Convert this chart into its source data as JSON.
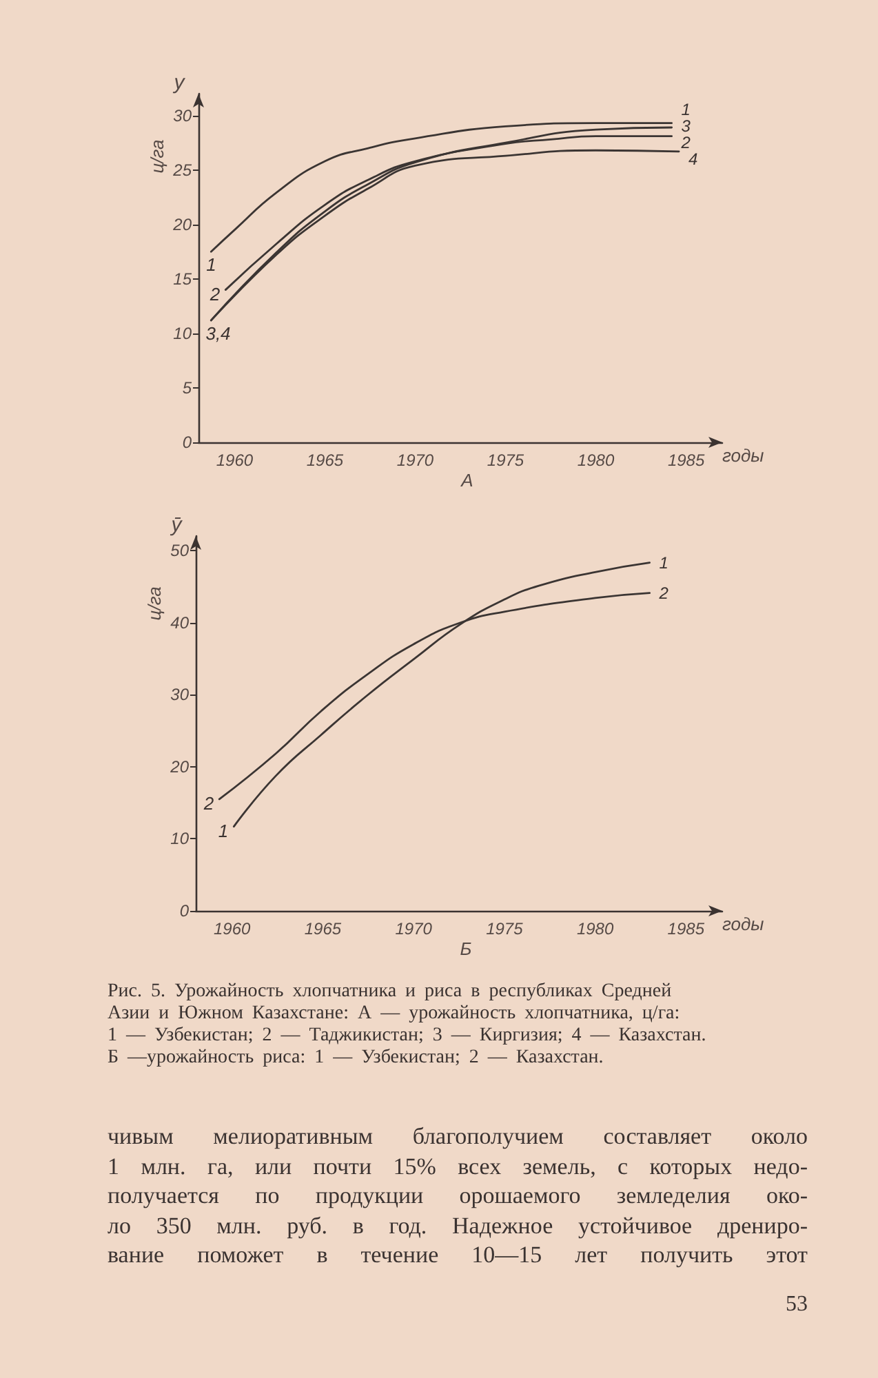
{
  "chart_data": [
    {
      "type": "line",
      "title": "А",
      "xlabel": "годы",
      "ylabel": "ц/га",
      "xlim": [
        1958,
        1987
      ],
      "xticks": [
        1960,
        1965,
        1970,
        1975,
        1980,
        1985
      ],
      "ylim": [
        0,
        32
      ],
      "yticks": [
        0,
        5,
        10,
        15,
        20,
        25,
        30
      ],
      "grid": false,
      "legend": false,
      "marker": "none",
      "line_style": "solid",
      "series": [
        {
          "name": "1",
          "color": "#3b3533",
          "x": [
            1958.7,
            1960,
            1962.3,
            1965,
            1967.4,
            1970,
            1975,
            1980,
            1984.2
          ],
          "values": [
            17.5,
            19.5,
            22.9,
            25.8,
            27,
            27.9,
            29,
            29.3,
            29.3
          ]
        },
        {
          "name": "2",
          "color": "#3b3533",
          "x": [
            1959.5,
            1962.3,
            1965,
            1967.4,
            1970,
            1975,
            1977.5,
            1980,
            1984.2
          ],
          "values": [
            14,
            18.2,
            21.8,
            24.1,
            25.8,
            27.4,
            27.8,
            28.1,
            28.1
          ]
        },
        {
          "name": "3",
          "color": "#3b3533",
          "x": [
            1958.7,
            1962.3,
            1965,
            1967.4,
            1970,
            1975,
            1980,
            1984.2
          ],
          "values": [
            11.2,
            17.4,
            21.2,
            23.7,
            25.7,
            27.5,
            28.7,
            28.9
          ]
        },
        {
          "name": "4",
          "color": "#3b3533",
          "x": [
            1958.7,
            1962.3,
            1965,
            1967.4,
            1970,
            1975,
            1980,
            1984.6
          ],
          "values": [
            11.2,
            17.2,
            20.8,
            23.3,
            25.4,
            26.3,
            26.8,
            26.7
          ]
        }
      ],
      "annotations": [
        "1",
        "2",
        "3,4",
        "y"
      ]
    },
    {
      "type": "line",
      "title": "Б",
      "xlabel": "годы",
      "ylabel": "ц/га",
      "xlim": [
        1958,
        1987
      ],
      "xticks": [
        1960,
        1965,
        1970,
        1975,
        1980,
        1985
      ],
      "ylim": [
        0,
        52
      ],
      "yticks": [
        0,
        10,
        20,
        30,
        40,
        50
      ],
      "grid": false,
      "legend": false,
      "marker": "none",
      "line_style": "solid",
      "series": [
        {
          "name": "1",
          "color": "#3b3533",
          "x": [
            1960.1,
            1962.4,
            1964.9,
            1967.4,
            1970,
            1972.6,
            1975,
            1976.9,
            1980,
            1983
          ],
          "values": [
            11.7,
            18.7,
            24.4,
            29.8,
            34.9,
            39.8,
            43.2,
            45.1,
            47,
            48.3
          ]
        },
        {
          "name": "2",
          "color": "#3b3533",
          "x": [
            1959.3,
            1962.4,
            1964.9,
            1967.4,
            1970,
            1972.6,
            1975,
            1980,
            1983
          ],
          "values": [
            15.5,
            21.8,
            27.7,
            32.7,
            37,
            40,
            41.5,
            43.4,
            44.1
          ]
        }
      ],
      "annotations": [
        "1",
        "2",
        "ȳ",
        "Рис. 5. Урожайность хлопчатника и риса в республиках Средней\nАзии и Южном Казахстане: А — урожайность хлопчатника, ц/га:\n1 — Узбекистан; 2 — Таджикистан; 3 — Киргизия; 4 — Казахстан.\nБ —урожайность риса: 1 — Узбекистан; 2 — Казахстан."
      ]
    },
    {
      "type": "other",
      "annotations": [
        "чивым мелиоративным благополучием составляет около\n1 млн. га, или почти 15% всех земель, с которых недо-\nполучается по продукции орошаемого земледелия око-\nло 350 млн. руб. в год. Надежное устойчивое дрениро-\nвание поможет в течение 10—15 лет получить этот",
        "53"
      ]
    }
  ]
}
